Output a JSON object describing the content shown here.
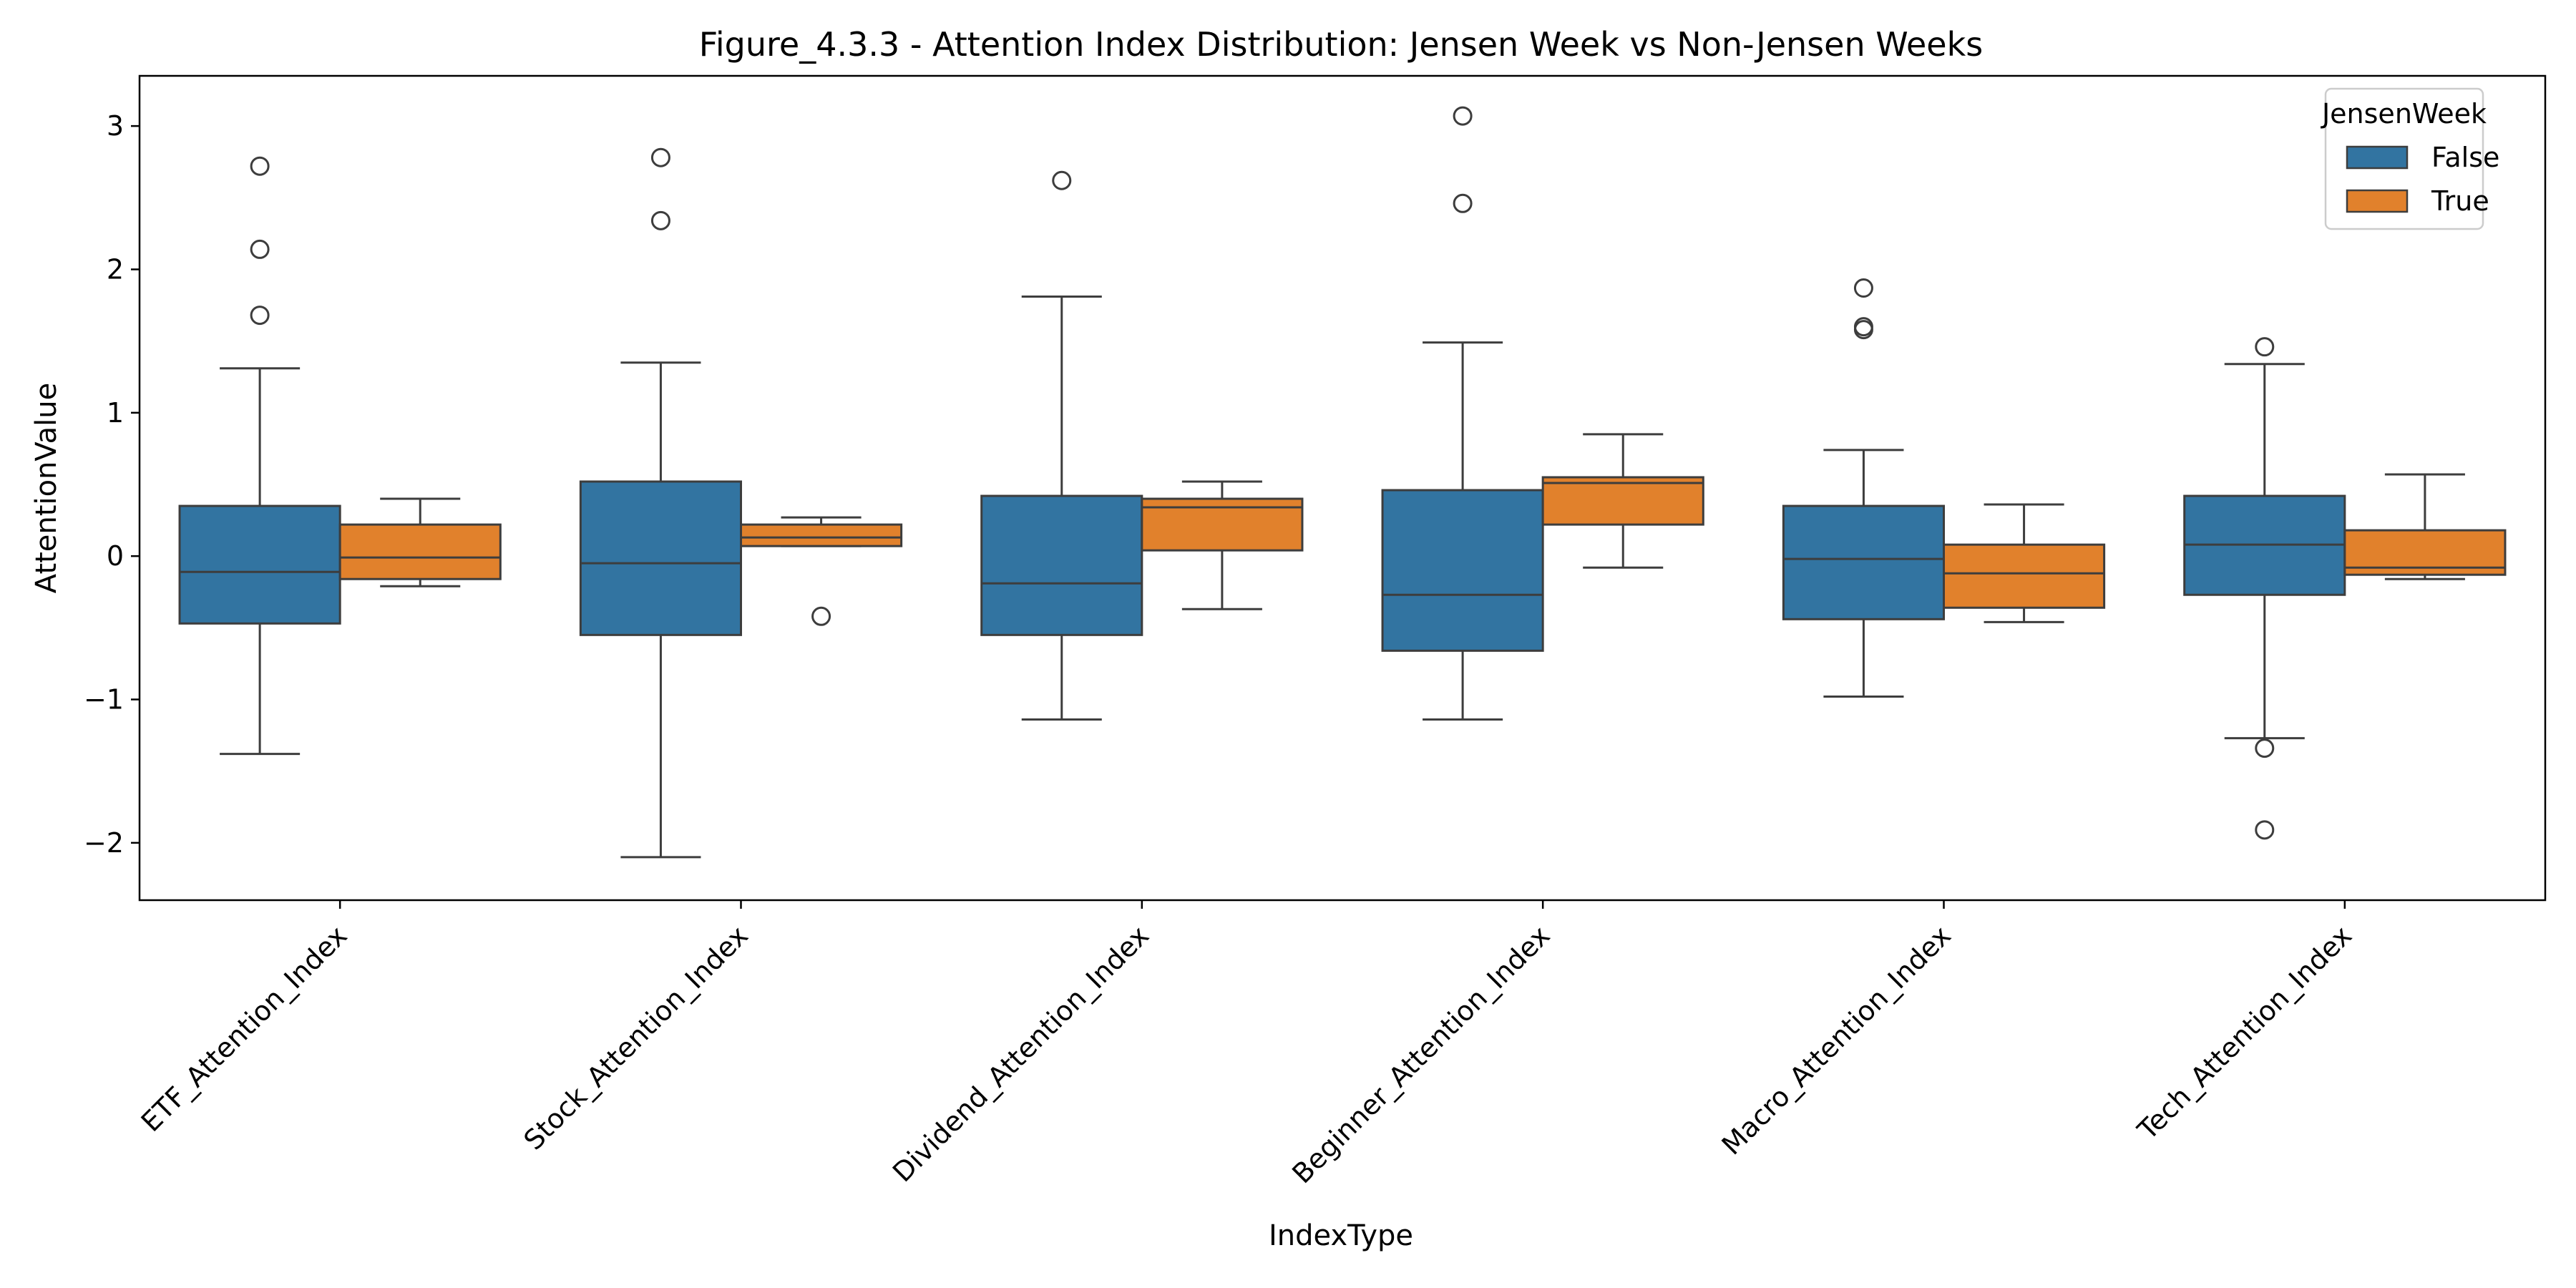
{
  "chart_data": {
    "type": "box",
    "title": "Figure_4.3.3 - Attention Index Distribution: Jensen Week vs Non-Jensen Weeks",
    "xlabel": "IndexType",
    "ylabel": "AttentionValue",
    "ylim": [
      -2.4,
      3.35
    ],
    "yticks": [
      -2,
      -1,
      0,
      1,
      2,
      3
    ],
    "ytick_labels": [
      "−2",
      "−1",
      "0",
      "1",
      "2",
      "3"
    ],
    "grid": false,
    "legend": {
      "title": "JensenWeek",
      "position": "top-right",
      "entries": [
        "False",
        "True"
      ]
    },
    "colors": {
      "False": "#3274a1",
      "True": "#e1812c",
      "edge": "#3d3d3d"
    },
    "categories": [
      "ETF_Attention_Index",
      "Stock_Attention_Index",
      "Dividend_Attention_Index",
      "Beginner_Attention_Index",
      "Macro_Attention_Index",
      "Tech_Attention_Index"
    ],
    "series": [
      {
        "name": "False",
        "boxes": [
          {
            "whisker_low": -1.38,
            "q1": -0.47,
            "median": -0.11,
            "q3": 0.35,
            "whisker_high": 1.31,
            "outliers": [
              2.72,
              2.14,
              1.68
            ]
          },
          {
            "whisker_low": -2.1,
            "q1": -0.55,
            "median": -0.05,
            "q3": 0.52,
            "whisker_high": 1.35,
            "outliers": [
              2.78,
              2.34
            ]
          },
          {
            "whisker_low": -1.14,
            "q1": -0.55,
            "median": -0.19,
            "q3": 0.42,
            "whisker_high": 1.81,
            "outliers": [
              2.62
            ]
          },
          {
            "whisker_low": -1.14,
            "q1": -0.66,
            "median": -0.27,
            "q3": 0.46,
            "whisker_high": 1.49,
            "outliers": [
              3.07,
              2.46
            ]
          },
          {
            "whisker_low": -0.98,
            "q1": -0.44,
            "median": -0.02,
            "q3": 0.35,
            "whisker_high": 0.74,
            "outliers": [
              1.87,
              1.6,
              1.58
            ]
          },
          {
            "whisker_low": -1.27,
            "q1": -0.27,
            "median": 0.08,
            "q3": 0.42,
            "whisker_high": 1.34,
            "outliers": [
              1.46,
              -1.34,
              -1.91
            ]
          }
        ]
      },
      {
        "name": "True",
        "boxes": [
          {
            "whisker_low": -0.21,
            "q1": -0.16,
            "median": -0.01,
            "q3": 0.22,
            "whisker_high": 0.4,
            "outliers": []
          },
          {
            "whisker_low": 0.07,
            "q1": 0.07,
            "median": 0.13,
            "q3": 0.22,
            "whisker_high": 0.27,
            "outliers": [
              -0.42
            ]
          },
          {
            "whisker_low": -0.37,
            "q1": 0.04,
            "median": 0.34,
            "q3": 0.4,
            "whisker_high": 0.52,
            "outliers": []
          },
          {
            "whisker_low": -0.08,
            "q1": 0.22,
            "median": 0.51,
            "q3": 0.55,
            "whisker_high": 0.85,
            "outliers": []
          },
          {
            "whisker_low": -0.46,
            "q1": -0.36,
            "median": -0.12,
            "q3": 0.08,
            "whisker_high": 0.36,
            "outliers": []
          },
          {
            "whisker_low": -0.16,
            "q1": -0.13,
            "median": -0.08,
            "q3": 0.18,
            "whisker_high": 0.57,
            "outliers": []
          }
        ]
      }
    ]
  }
}
